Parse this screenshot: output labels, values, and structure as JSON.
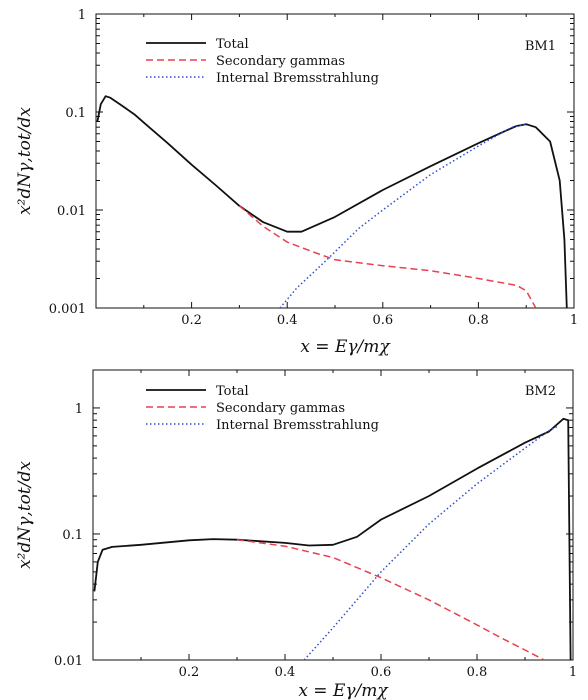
{
  "chart_data": [
    {
      "type": "line",
      "benchmark_label": "BM1",
      "xlabel": "x = Eγ/mχ",
      "ylabel": "x²dNγ,tot/dx",
      "xlim": [
        0,
        1
      ],
      "ylim": [
        0.001,
        1
      ],
      "yscale": "log",
      "x_ticks": [
        "0.2",
        "0.4",
        "0.6",
        "0.8",
        "1"
      ],
      "y_ticks": [
        "0.001",
        "0.01",
        "0.1",
        "1"
      ],
      "legend_position": "top-left",
      "series": [
        {
          "name": "Total",
          "style": "solid",
          "color": "#111111",
          "points": [
            [
              0.003,
              0.08
            ],
            [
              0.01,
              0.12
            ],
            [
              0.02,
              0.145
            ],
            [
              0.03,
              0.14
            ],
            [
              0.05,
              0.12
            ],
            [
              0.08,
              0.095
            ],
            [
              0.1,
              0.078
            ],
            [
              0.15,
              0.048
            ],
            [
              0.2,
              0.029
            ],
            [
              0.25,
              0.018
            ],
            [
              0.3,
              0.011
            ],
            [
              0.35,
              0.0075
            ],
            [
              0.4,
              0.006
            ],
            [
              0.43,
              0.006
            ],
            [
              0.5,
              0.0085
            ],
            [
              0.6,
              0.016
            ],
            [
              0.7,
              0.028
            ],
            [
              0.8,
              0.048
            ],
            [
              0.85,
              0.062
            ],
            [
              0.88,
              0.072
            ],
            [
              0.9,
              0.075
            ],
            [
              0.92,
              0.07
            ],
            [
              0.95,
              0.05
            ],
            [
              0.97,
              0.02
            ],
            [
              0.98,
              0.005
            ],
            [
              0.985,
              0.001
            ]
          ]
        },
        {
          "name": "Secondary gammas",
          "style": "dashed",
          "color": "#e8414f",
          "points": [
            [
              0.3,
              0.011
            ],
            [
              0.35,
              0.0068
            ],
            [
              0.4,
              0.0047
            ],
            [
              0.45,
              0.0038
            ],
            [
              0.5,
              0.0031
            ],
            [
              0.6,
              0.0027
            ],
            [
              0.7,
              0.0024
            ],
            [
              0.8,
              0.002
            ],
            [
              0.88,
              0.0017
            ],
            [
              0.9,
              0.0015
            ],
            [
              0.92,
              0.001
            ]
          ]
        },
        {
          "name": "Internal Bremsstrahlung",
          "style": "dotted",
          "color": "#3050c8",
          "points": [
            [
              0.385,
              0.001
            ],
            [
              0.42,
              0.0016
            ],
            [
              0.48,
              0.003
            ],
            [
              0.55,
              0.0065
            ],
            [
              0.6,
              0.01
            ],
            [
              0.7,
              0.023
            ],
            [
              0.8,
              0.045
            ],
            [
              0.87,
              0.07
            ],
            [
              0.9,
              0.075
            ]
          ]
        }
      ]
    },
    {
      "type": "line",
      "benchmark_label": "BM2",
      "xlabel": "x = Eγ/mχ",
      "ylabel": "x²dNγ,tot/dx",
      "xlim": [
        0,
        1
      ],
      "ylim": [
        0.01,
        2
      ],
      "yscale": "log",
      "x_ticks": [
        "0.2",
        "0.4",
        "0.6",
        "0.8",
        "1"
      ],
      "y_ticks": [
        "0.01",
        "0.1",
        "1"
      ],
      "legend_position": "top-left",
      "series": [
        {
          "name": "Total",
          "style": "solid",
          "color": "#111111",
          "points": [
            [
              0.003,
              0.035
            ],
            [
              0.01,
              0.06
            ],
            [
              0.02,
              0.075
            ],
            [
              0.04,
              0.079
            ],
            [
              0.1,
              0.082
            ],
            [
              0.2,
              0.089
            ],
            [
              0.25,
              0.091
            ],
            [
              0.3,
              0.09
            ],
            [
              0.4,
              0.085
            ],
            [
              0.45,
              0.081
            ],
            [
              0.5,
              0.082
            ],
            [
              0.55,
              0.095
            ],
            [
              0.6,
              0.13
            ],
            [
              0.7,
              0.2
            ],
            [
              0.8,
              0.33
            ],
            [
              0.9,
              0.53
            ],
            [
              0.95,
              0.65
            ],
            [
              0.98,
              0.82
            ],
            [
              0.99,
              0.8
            ],
            [
              0.995,
              0.01
            ]
          ]
        },
        {
          "name": "Secondary gammas",
          "style": "dashed",
          "color": "#e8414f",
          "points": [
            [
              0.3,
              0.09
            ],
            [
              0.4,
              0.08
            ],
            [
              0.5,
              0.065
            ],
            [
              0.6,
              0.045
            ],
            [
              0.7,
              0.03
            ],
            [
              0.8,
              0.019
            ],
            [
              0.85,
              0.015
            ],
            [
              0.9,
              0.012
            ],
            [
              0.94,
              0.01
            ]
          ]
        },
        {
          "name": "Internal Bremsstrahlung",
          "style": "dotted",
          "color": "#3050c8",
          "points": [
            [
              0.44,
              0.01
            ],
            [
              0.5,
              0.018
            ],
            [
              0.6,
              0.05
            ],
            [
              0.7,
              0.12
            ],
            [
              0.8,
              0.25
            ],
            [
              0.9,
              0.48
            ],
            [
              0.95,
              0.66
            ],
            [
              0.97,
              0.72
            ]
          ]
        }
      ]
    }
  ]
}
